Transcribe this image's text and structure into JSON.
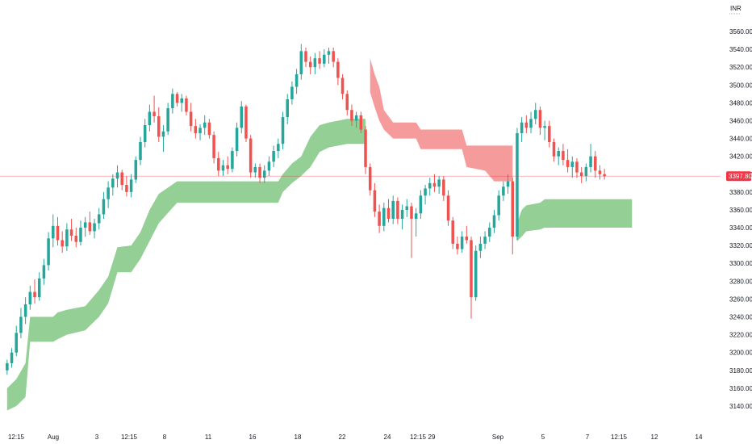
{
  "chart_data": {
    "type": "candlestick",
    "currency": "INR",
    "current_price": "3397.80",
    "ylim": [
      3130,
      3570
    ],
    "y_ticks": [
      "3560.00",
      "3540.00",
      "3520.00",
      "3500.00",
      "3480.00",
      "3460.00",
      "3440.00",
      "3420.00",
      "3400.00",
      "3380.00",
      "3360.00",
      "3340.00",
      "3320.00",
      "3300.00",
      "3280.00",
      "3260.00",
      "3240.00",
      "3220.00",
      "3200.00",
      "3180.00",
      "3160.00",
      "3140.00"
    ],
    "x_ticks": [
      "12:15",
      "Aug",
      "3",
      "12:15",
      "8",
      "11",
      "16",
      "18",
      "22",
      "24",
      "12:15",
      "29",
      "Sep",
      "5",
      "7",
      "12:15",
      "12",
      "14"
    ],
    "colors": {
      "up": "#26a69a",
      "down": "#ef5350",
      "support_zone": "#81c784",
      "resistance_zone": "#f48a8a",
      "price_line": "#f23645"
    },
    "candles": [
      [
        3180,
        3192,
        3175,
        3188
      ],
      [
        3188,
        3205,
        3183,
        3200
      ],
      [
        3200,
        3230,
        3196,
        3222
      ],
      [
        3222,
        3250,
        3216,
        3240
      ],
      [
        3240,
        3262,
        3232,
        3254
      ],
      [
        3254,
        3275,
        3248,
        3268
      ],
      [
        3268,
        3282,
        3255,
        3262
      ],
      [
        3262,
        3290,
        3258,
        3283
      ],
      [
        3283,
        3305,
        3276,
        3298
      ],
      [
        3298,
        3335,
        3292,
        3328
      ],
      [
        3328,
        3355,
        3318,
        3342
      ],
      [
        3342,
        3352,
        3320,
        3326
      ],
      [
        3326,
        3336,
        3312,
        3319
      ],
      [
        3319,
        3345,
        3314,
        3338
      ],
      [
        3338,
        3350,
        3325,
        3331
      ],
      [
        3331,
        3340,
        3318,
        3324
      ],
      [
        3324,
        3348,
        3320,
        3340
      ],
      [
        3340,
        3352,
        3330,
        3346
      ],
      [
        3346,
        3358,
        3332,
        3336
      ],
      [
        3336,
        3350,
        3328,
        3345
      ],
      [
        3345,
        3362,
        3338,
        3355
      ],
      [
        3355,
        3380,
        3350,
        3372
      ],
      [
        3372,
        3392,
        3362,
        3385
      ],
      [
        3385,
        3400,
        3376,
        3395
      ],
      [
        3395,
        3410,
        3385,
        3402
      ],
      [
        3402,
        3405,
        3382,
        3388
      ],
      [
        3388,
        3398,
        3375,
        3380
      ],
      [
        3380,
        3400,
        3374,
        3394
      ],
      [
        3394,
        3420,
        3390,
        3416
      ],
      [
        3416,
        3442,
        3410,
        3436
      ],
      [
        3436,
        3462,
        3430,
        3455
      ],
      [
        3455,
        3478,
        3448,
        3470
      ],
      [
        3470,
        3488,
        3458,
        3465
      ],
      [
        3465,
        3475,
        3436,
        3442
      ],
      [
        3442,
        3455,
        3425,
        3448
      ],
      [
        3448,
        3480,
        3444,
        3474
      ],
      [
        3474,
        3496,
        3468,
        3490
      ],
      [
        3490,
        3492,
        3476,
        3480
      ],
      [
        3480,
        3490,
        3470,
        3485
      ],
      [
        3485,
        3488,
        3466,
        3470
      ],
      [
        3470,
        3480,
        3448,
        3454
      ],
      [
        3454,
        3462,
        3440,
        3446
      ],
      [
        3446,
        3456,
        3438,
        3452
      ],
      [
        3452,
        3466,
        3444,
        3458
      ],
      [
        3458,
        3462,
        3440,
        3444
      ],
      [
        3444,
        3448,
        3412,
        3418
      ],
      [
        3418,
        3425,
        3398,
        3404
      ],
      [
        3404,
        3416,
        3398,
        3410
      ],
      [
        3410,
        3420,
        3400,
        3406
      ],
      [
        3406,
        3430,
        3402,
        3426
      ],
      [
        3426,
        3458,
        3420,
        3452
      ],
      [
        3452,
        3482,
        3446,
        3476
      ],
      [
        3476,
        3478,
        3436,
        3440
      ],
      [
        3440,
        3444,
        3396,
        3402
      ],
      [
        3402,
        3412,
        3396,
        3408
      ],
      [
        3408,
        3412,
        3390,
        3396
      ],
      [
        3396,
        3410,
        3390,
        3404
      ],
      [
        3404,
        3420,
        3398,
        3414
      ],
      [
        3414,
        3432,
        3408,
        3426
      ],
      [
        3426,
        3440,
        3418,
        3434
      ],
      [
        3434,
        3470,
        3428,
        3464
      ],
      [
        3464,
        3490,
        3456,
        3484
      ],
      [
        3484,
        3504,
        3478,
        3498
      ],
      [
        3498,
        3518,
        3490,
        3512
      ],
      [
        3512,
        3546,
        3506,
        3538
      ],
      [
        3538,
        3542,
        3520,
        3526
      ],
      [
        3526,
        3532,
        3512,
        3520
      ],
      [
        3520,
        3536,
        3512,
        3530
      ],
      [
        3530,
        3538,
        3518,
        3524
      ],
      [
        3524,
        3540,
        3520,
        3534
      ],
      [
        3534,
        3542,
        3524,
        3538
      ],
      [
        3538,
        3542,
        3520,
        3526
      ],
      [
        3526,
        3530,
        3500,
        3508
      ],
      [
        3508,
        3512,
        3484,
        3490
      ],
      [
        3490,
        3494,
        3466,
        3472
      ],
      [
        3472,
        3478,
        3454,
        3460
      ],
      [
        3460,
        3470,
        3452,
        3466
      ],
      [
        3466,
        3470,
        3446,
        3450
      ],
      [
        3450,
        3454,
        3400,
        3408
      ],
      [
        3408,
        3412,
        3376,
        3382
      ],
      [
        3382,
        3390,
        3352,
        3358
      ],
      [
        3358,
        3366,
        3334,
        3342
      ],
      [
        3342,
        3368,
        3336,
        3362
      ],
      [
        3362,
        3372,
        3346,
        3350
      ],
      [
        3350,
        3376,
        3344,
        3370
      ],
      [
        3370,
        3374,
        3344,
        3350
      ],
      [
        3350,
        3366,
        3338,
        3360
      ],
      [
        3360,
        3372,
        3352,
        3364
      ],
      [
        3364,
        3368,
        3306,
        3350
      ],
      [
        3350,
        3362,
        3330,
        3356
      ],
      [
        3356,
        3382,
        3350,
        3376
      ],
      [
        3376,
        3388,
        3366,
        3384
      ],
      [
        3384,
        3396,
        3376,
        3390
      ],
      [
        3390,
        3400,
        3380,
        3386
      ],
      [
        3386,
        3398,
        3378,
        3394
      ],
      [
        3394,
        3398,
        3370,
        3376
      ],
      [
        3376,
        3382,
        3342,
        3348
      ],
      [
        3348,
        3352,
        3316,
        3322
      ],
      [
        3322,
        3330,
        3310,
        3316
      ],
      [
        3316,
        3336,
        3312,
        3330
      ],
      [
        3330,
        3342,
        3322,
        3326
      ],
      [
        3326,
        3330,
        3238,
        3262
      ],
      [
        3262,
        3320,
        3258,
        3314
      ],
      [
        3314,
        3330,
        3306,
        3322
      ],
      [
        3322,
        3336,
        3316,
        3330
      ],
      [
        3330,
        3346,
        3324,
        3340
      ],
      [
        3340,
        3360,
        3334,
        3354
      ],
      [
        3354,
        3382,
        3348,
        3376
      ],
      [
        3376,
        3392,
        3370,
        3386
      ],
      [
        3386,
        3400,
        3378,
        3392
      ],
      [
        3392,
        3396,
        3310,
        3330
      ],
      [
        3330,
        3452,
        3326,
        3446
      ],
      [
        3446,
        3464,
        3436,
        3458
      ],
      [
        3458,
        3466,
        3446,
        3452
      ],
      [
        3452,
        3470,
        3446,
        3462
      ],
      [
        3462,
        3480,
        3456,
        3472
      ],
      [
        3472,
        3476,
        3444,
        3452
      ],
      [
        3452,
        3460,
        3438,
        3454
      ],
      [
        3454,
        3460,
        3430,
        3436
      ],
      [
        3436,
        3440,
        3414,
        3420
      ],
      [
        3420,
        3430,
        3410,
        3426
      ],
      [
        3426,
        3434,
        3410,
        3416
      ],
      [
        3416,
        3428,
        3402,
        3408
      ],
      [
        3408,
        3420,
        3396,
        3414
      ],
      [
        3414,
        3418,
        3396,
        3402
      ],
      [
        3402,
        3408,
        3390,
        3398
      ],
      [
        3398,
        3412,
        3392,
        3408
      ],
      [
        3408,
        3434,
        3402,
        3420
      ],
      [
        3420,
        3426,
        3396,
        3404
      ],
      [
        3404,
        3410,
        3394,
        3400
      ],
      [
        3400,
        3406,
        3394,
        3397.8
      ]
    ],
    "zones": [
      {
        "name": "support",
        "points": [
          [
            0,
            3135,
            3160
          ],
          [
            2,
            3140,
            3170
          ],
          [
            4,
            3150,
            3188
          ],
          [
            5,
            3212,
            3240
          ],
          [
            10,
            3212,
            3240
          ],
          [
            11,
            3215,
            3245
          ],
          [
            13,
            3220,
            3248
          ],
          [
            17,
            3225,
            3252
          ],
          [
            20,
            3240,
            3270
          ],
          [
            22,
            3255,
            3285
          ],
          [
            24,
            3290,
            3318
          ],
          [
            27,
            3290,
            3320
          ],
          [
            29,
            3305,
            3335
          ],
          [
            31,
            3325,
            3360
          ],
          [
            33,
            3345,
            3378
          ],
          [
            37,
            3368,
            3392
          ],
          [
            59,
            3368,
            3392
          ],
          [
            60,
            3380,
            3400
          ],
          [
            62,
            3390,
            3412
          ],
          [
            64,
            3398,
            3420
          ],
          [
            66,
            3408,
            3442
          ],
          [
            68,
            3425,
            3455
          ],
          [
            70,
            3430,
            3458
          ],
          [
            74,
            3434,
            3462
          ],
          [
            78,
            3434,
            3462
          ]
        ]
      },
      {
        "name": "resistance",
        "points": [
          [
            79,
            3492,
            3530
          ],
          [
            80,
            3475,
            3512
          ],
          [
            81,
            3460,
            3498
          ],
          [
            82,
            3450,
            3472
          ],
          [
            84,
            3440,
            3458
          ],
          [
            89,
            3440,
            3458
          ],
          [
            90,
            3428,
            3450
          ],
          [
            99,
            3428,
            3450
          ],
          [
            100,
            3408,
            3432
          ],
          [
            104,
            3404,
            3432
          ],
          [
            106,
            3392,
            3432
          ],
          [
            110,
            3392,
            3432
          ]
        ]
      },
      {
        "name": "support-2",
        "points": [
          [
            111,
            3325,
            3345
          ],
          [
            112,
            3330,
            3360
          ],
          [
            113,
            3336,
            3365
          ],
          [
            116,
            3338,
            3368
          ],
          [
            117,
            3340,
            3372
          ],
          [
            136,
            3340,
            3372
          ]
        ]
      }
    ]
  }
}
